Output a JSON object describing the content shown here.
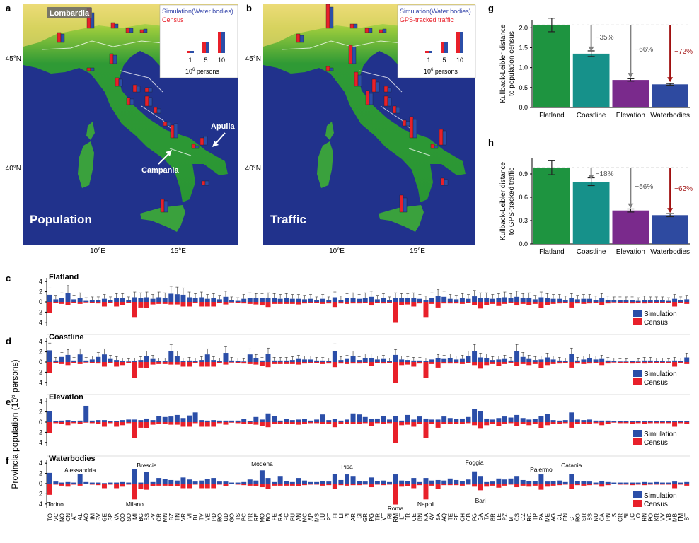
{
  "panels": {
    "a": "a",
    "b": "b",
    "c": "c",
    "d": "d",
    "e": "e",
    "f": "f",
    "g": "g",
    "h": "h"
  },
  "maps": {
    "lat_labels": [
      "45°N",
      "40°N"
    ],
    "lon_labels": [
      "10°E",
      "15°E"
    ],
    "a": {
      "title": "Population",
      "legend_sim": "Simulation(Water bodies)",
      "legend_obs": "Census",
      "scale_labels": [
        "1",
        "5",
        "10"
      ],
      "scale_unit_base": "10",
      "scale_unit_exp": "6",
      "scale_unit_rest": " persons",
      "regions": [
        "Lombardia",
        "Apulia",
        "Campania"
      ]
    },
    "b": {
      "title": "Traffic",
      "legend_sim": "Simulation(Water bodies)",
      "legend_obs": "GPS-tracked traffic",
      "scale_labels": [
        "1",
        "5",
        "10"
      ],
      "scale_unit_base": "10",
      "scale_unit_exp": "6",
      "scale_unit_rest": " persons"
    }
  },
  "colors": {
    "simulation": "#2b4ea8",
    "census": "#e8202a",
    "flatland": "#1e9440",
    "coastline": "#16918a",
    "elevation": "#7a2a8c",
    "waterbodies": "#2e4aa0",
    "arrow_gray": "#808080",
    "arrow_red": "#a01010",
    "sea": "#21328c"
  },
  "bar_rows": {
    "ylabel_pre": "Provincia population (10",
    "ylabel_exp": "6",
    "ylabel_post": " persons)",
    "yticks": [
      "4",
      "2",
      "0",
      "2",
      "4"
    ],
    "legend_sim": "Simulation",
    "legend_census": "Census",
    "rows": [
      {
        "key": "c",
        "title": "Flatland"
      },
      {
        "key": "d",
        "title": "Coastline"
      },
      {
        "key": "e",
        "title": "Elevation"
      },
      {
        "key": "f",
        "title": "Waterbodies"
      }
    ],
    "city_labels": [
      "Torino",
      "Alessandria",
      "Milano",
      "Brescia",
      "Modena",
      "Pisa",
      "Roma",
      "Napoli",
      "Foggia",
      "Bari",
      "Palermo",
      "Catania"
    ]
  },
  "chart_data": [
    {
      "type": "bar",
      "panel": "g",
      "categories": [
        "Flatland",
        "Coastline",
        "Elevation",
        "Waterbodies"
      ],
      "values": [
        2.07,
        1.35,
        0.69,
        0.58
      ],
      "errors": [
        0.17,
        0.07,
        0.03,
        0.02
      ],
      "ylabel": "Kullback-Leibler distance to population census",
      "yticks": [
        "0.0",
        "0.5",
        "1.0",
        "1.5",
        "2.0"
      ],
      "ylim": [
        0,
        2.2
      ],
      "reductions": [
        "−35%",
        "−66%",
        "−72%"
      ]
    },
    {
      "type": "bar",
      "panel": "h",
      "categories": [
        "Flatland",
        "Coastline",
        "Elevation",
        "Waterbodies"
      ],
      "values": [
        0.98,
        0.8,
        0.43,
        0.37
      ],
      "errors": [
        0.09,
        0.05,
        0.02,
        0.02
      ],
      "ylabel": "Kullback-Leibler distance to GPS-tracked traffic",
      "yticks": [
        "0.0",
        "0.3",
        "0.6",
        "0.9"
      ],
      "ylim": [
        0,
        1.1
      ],
      "reductions": [
        "−18%",
        "−56%",
        "−62%"
      ]
    },
    {
      "type": "bar",
      "panel": "c-f",
      "categories": [
        "TO",
        "VC",
        "NO",
        "CN",
        "AT",
        "AL",
        "AO",
        "IM",
        "SV",
        "GE",
        "SP",
        "VA",
        "CO",
        "SO",
        "MI",
        "BG",
        "BS",
        "PV",
        "CR",
        "MN",
        "BZ",
        "TN",
        "VR",
        "VI",
        "BL",
        "TV",
        "VE",
        "PD",
        "RO",
        "UD",
        "GO",
        "TS",
        "PC",
        "PR",
        "RE",
        "MO",
        "BO",
        "FE",
        "RA",
        "FC",
        "PU",
        "AN",
        "MC",
        "AP",
        "MS",
        "LU",
        "PT",
        "FI",
        "LI",
        "PI",
        "AR",
        "SI",
        "GR",
        "PG",
        "TR",
        "VT",
        "RI",
        "RM",
        "LT",
        "FR",
        "CE",
        "BN",
        "NA",
        "AV",
        "SA",
        "AQ",
        "TE",
        "PE",
        "CH",
        "CB",
        "FG",
        "BA",
        "TA",
        "BR",
        "LE",
        "PZ",
        "MT",
        "CS",
        "CZ",
        "RC",
        "TP",
        "PA",
        "ME",
        "AG",
        "CL",
        "EN",
        "CT",
        "RG",
        "SR",
        "SS",
        "NU",
        "CA",
        "PN",
        "IS",
        "OR",
        "BI",
        "LC",
        "LO",
        "RN",
        "PO",
        "KR",
        "VV",
        "VB",
        "MB",
        "FM",
        "BT"
      ],
      "census": [
        2.2,
        0.2,
        0.4,
        0.6,
        0.2,
        0.4,
        0.1,
        0.2,
        0.3,
        0.9,
        0.2,
        0.9,
        0.6,
        0.2,
        3.1,
        1.1,
        1.2,
        0.5,
        0.4,
        0.4,
        0.5,
        0.5,
        0.9,
        0.9,
        0.2,
        0.9,
        0.9,
        0.9,
        0.2,
        0.5,
        0.1,
        0.2,
        0.3,
        0.4,
        0.5,
        0.7,
        1.0,
        0.4,
        0.4,
        0.4,
        0.4,
        0.5,
        0.3,
        0.2,
        0.2,
        0.4,
        0.3,
        1.0,
        0.3,
        0.4,
        0.3,
        0.3,
        0.2,
        0.7,
        0.2,
        0.3,
        0.2,
        4.1,
        0.6,
        0.5,
        0.9,
        0.3,
        3.1,
        0.4,
        1.1,
        0.3,
        0.3,
        0.3,
        0.4,
        0.2,
        0.6,
        1.3,
        0.6,
        0.4,
        0.8,
        0.4,
        0.2,
        0.7,
        0.4,
        0.6,
        0.4,
        1.2,
        0.6,
        0.4,
        0.3,
        0.2,
        1.1,
        0.3,
        0.4,
        0.3,
        0.2,
        0.6,
        0.3,
        0.1,
        0.2,
        0.2,
        0.3,
        0.2,
        0.3,
        0.2,
        0.2,
        0.2,
        0.2,
        0.9,
        0.2,
        0.4
      ],
      "series": [
        {
          "name": "Flatland",
          "values": [
            1.4,
            0.5,
            0.8,
            1.7,
            0.5,
            0.8,
            0.2,
            0.3,
            0.3,
            0.6,
            0.3,
            0.7,
            0.7,
            0.3,
            0.9,
            0.8,
            0.9,
            0.6,
            0.9,
            0.8,
            1.6,
            1.5,
            1.4,
            0.9,
            0.7,
            0.9,
            0.6,
            0.7,
            0.5,
            1.0,
            0.3,
            0.2,
            0.6,
            0.8,
            0.7,
            0.7,
            0.8,
            0.7,
            0.6,
            0.7,
            0.6,
            0.6,
            0.5,
            0.6,
            0.3,
            0.6,
            0.3,
            0.9,
            0.4,
            0.7,
            0.8,
            0.6,
            0.8,
            1.0,
            0.5,
            0.7,
            0.3,
            0.8,
            0.7,
            0.7,
            0.8,
            0.6,
            0.4,
            0.8,
            1.2,
            1.0,
            0.6,
            0.5,
            0.7,
            0.6,
            1.1,
            0.8,
            0.8,
            0.6,
            0.7,
            0.9,
            0.7,
            1.0,
            0.7,
            0.8,
            0.5,
            0.9,
            0.7,
            0.6,
            0.6,
            0.4,
            0.7,
            0.5,
            0.6,
            0.6,
            0.4,
            0.7,
            0.4,
            0.3,
            0.3,
            0.3,
            0.3,
            0.2,
            0.4,
            0.3,
            0.3,
            0.3,
            0.2,
            0.6,
            0.3,
            0.5
          ]
        },
        {
          "name": "Coastline",
          "values": [
            2.3,
            0.3,
            1.0,
            1.4,
            0.3,
            1.5,
            0.3,
            0.5,
            1.0,
            1.5,
            0.6,
            0.4,
            0.2,
            0.1,
            0.2,
            0.4,
            1.2,
            0.6,
            0.2,
            0.2,
            2.1,
            1.2,
            0.2,
            0.3,
            0.2,
            0.4,
            1.5,
            0.4,
            0.2,
            1.8,
            0.3,
            0.2,
            0.1,
            1.5,
            0.7,
            0.3,
            1.6,
            0.3,
            0.3,
            0.3,
            0.4,
            0.6,
            0.5,
            0.5,
            0.3,
            0.3,
            0.2,
            2.2,
            0.4,
            0.6,
            1.2,
            0.4,
            0.8,
            0.8,
            0.5,
            0.6,
            0.2,
            1.4,
            0.5,
            0.4,
            0.3,
            0.3,
            0.2,
            0.5,
            0.7,
            0.6,
            0.8,
            0.5,
            0.6,
            1.2,
            2.1,
            0.9,
            0.8,
            0.4,
            0.5,
            0.6,
            0.3,
            2.1,
            1.0,
            0.6,
            0.4,
            0.5,
            0.9,
            0.5,
            0.3,
            0.2,
            1.6,
            0.3,
            0.5,
            0.8,
            0.5,
            0.6,
            0.3,
            0.2,
            0.1,
            0.1,
            0.2,
            0.1,
            0.3,
            0.3,
            0.2,
            0.2,
            0.1,
            0.3,
            0.2,
            0.9
          ]
        },
        {
          "name": "Elevation",
          "values": [
            2.2,
            0.2,
            0.3,
            0.4,
            0.2,
            0.3,
            3.2,
            0.3,
            0.4,
            0.4,
            0.2,
            0.2,
            0.4,
            0.5,
            0.5,
            0.4,
            0.7,
            0.4,
            1.2,
            1.0,
            1.1,
            1.4,
            0.8,
            1.3,
            1.9,
            0.4,
            0.3,
            0.4,
            0.3,
            0.3,
            0.3,
            0.3,
            0.6,
            0.2,
            1.0,
            0.5,
            1.7,
            1.2,
            0.3,
            0.6,
            0.4,
            0.5,
            0.6,
            0.3,
            0.5,
            1.5,
            0.4,
            0.6,
            0.3,
            0.5,
            1.7,
            1.5,
            1.0,
            0.6,
            0.7,
            1.2,
            0.5,
            1.2,
            0.3,
            1.4,
            0.5,
            1.1,
            0.7,
            0.5,
            0.5,
            1.1,
            0.8,
            0.6,
            0.7,
            1.0,
            2.5,
            2.2,
            0.7,
            0.5,
            0.8,
            1.1,
            0.9,
            1.4,
            0.8,
            0.5,
            0.6,
            1.2,
            1.6,
            0.4,
            0.3,
            0.4,
            1.9,
            0.5,
            0.4,
            0.5,
            0.3,
            0.3,
            0.3,
            0.2,
            0.2,
            0.2,
            0.2,
            0.2,
            0.2,
            0.2,
            0.2,
            0.2,
            0.2,
            0.2,
            0.2,
            0.2
          ]
        },
        {
          "name": "Waterbodies",
          "values": [
            2.1,
            0.4,
            0.2,
            0.3,
            0.2,
            1.9,
            0.3,
            0.2,
            0.2,
            0.1,
            0.2,
            0.2,
            0.3,
            0.2,
            2.8,
            0.2,
            2.3,
            0.3,
            1.1,
            0.9,
            0.7,
            0.6,
            1.2,
            0.8,
            0.4,
            0.6,
            0.9,
            1.1,
            0.4,
            0.4,
            0.2,
            0.2,
            0.3,
            0.8,
            0.6,
            2.6,
            1.1,
            0.3,
            1.5,
            0.5,
            0.3,
            1.1,
            0.6,
            0.3,
            0.3,
            0.5,
            0.4,
            1.9,
            0.7,
            1.8,
            1.5,
            0.5,
            0.4,
            1.2,
            0.5,
            0.6,
            0.3,
            1.8,
            0.6,
            0.5,
            1.1,
            0.3,
            1.1,
            0.6,
            0.7,
            0.6,
            1.0,
            0.7,
            0.5,
            0.8,
            2.4,
            1.5,
            0.3,
            0.4,
            1.0,
            0.8,
            1.0,
            1.5,
            0.7,
            0.5,
            0.5,
            1.8,
            0.4,
            0.5,
            0.6,
            0.3,
            1.9,
            0.5,
            0.5,
            0.4,
            0.2,
            0.5,
            0.3,
            0.2,
            0.2,
            0.2,
            0.2,
            0.2,
            0.3,
            0.2,
            0.3,
            0.2,
            0.2,
            0.4,
            0.2,
            0.3
          ]
        }
      ]
    }
  ]
}
